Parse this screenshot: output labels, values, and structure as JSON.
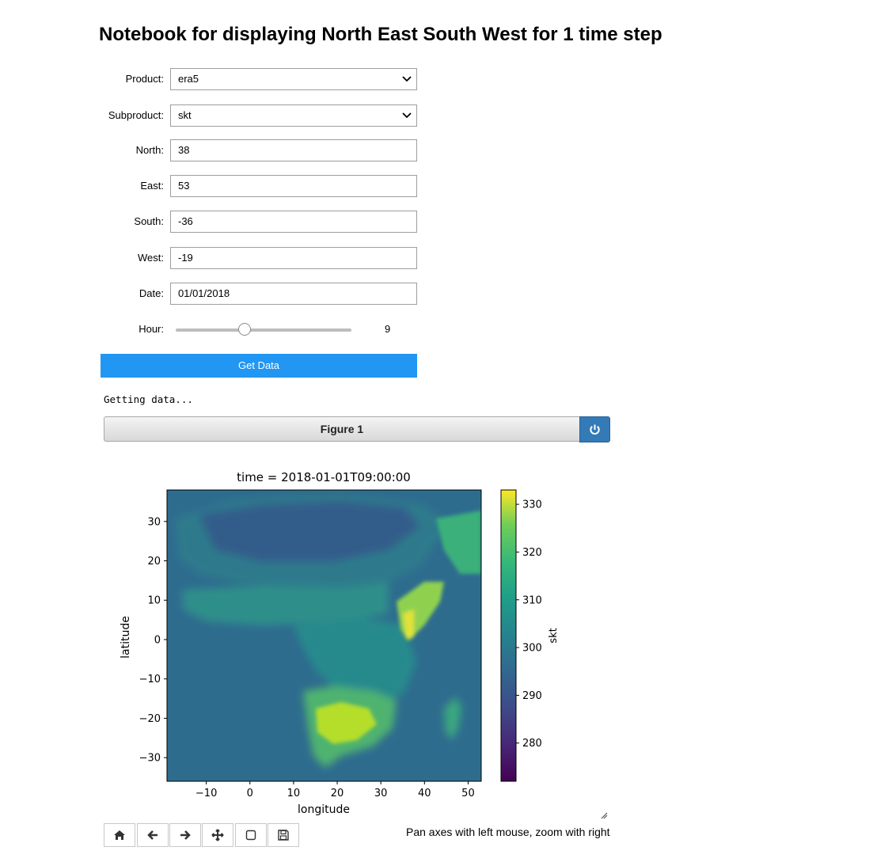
{
  "page": {
    "title": "Notebook for displaying North East South West for 1 time step"
  },
  "form": {
    "product": {
      "label": "Product:",
      "value": "era5"
    },
    "subproduct": {
      "label": "Subproduct:",
      "value": "skt"
    },
    "north": {
      "label": "North:",
      "value": "38"
    },
    "east": {
      "label": "East:",
      "value": "53"
    },
    "south": {
      "label": "South:",
      "value": "-36"
    },
    "west": {
      "label": "West:",
      "value": "-19"
    },
    "date": {
      "label": "Date:",
      "value": "01/01/2018"
    },
    "hour": {
      "label": "Hour:",
      "value": "9",
      "min": 0,
      "max": 23
    }
  },
  "get_data_label": "Get Data",
  "status_text": "Getting data...",
  "figure": {
    "title": "Figure 1",
    "hint": "Pan axes with left mouse, zoom with right"
  },
  "toolbar": [
    "home-icon",
    "back-icon",
    "forward-icon",
    "pan-icon",
    "zoom-rect-icon",
    "save-icon"
  ],
  "chart_data": {
    "type": "heatmap",
    "title": "time = 2018-01-01T09:00:00",
    "xlabel": "longitude",
    "ylabel": "latitude",
    "xlim": [
      -19,
      53
    ],
    "ylim": [
      -36,
      38
    ],
    "xticks": [
      -10,
      0,
      10,
      20,
      30,
      40,
      50
    ],
    "yticks": [
      30,
      20,
      10,
      0,
      -10,
      -20,
      -30
    ],
    "colorbar": {
      "label": "skt",
      "range": [
        272,
        333
      ],
      "ticks": [
        330,
        320,
        310,
        300,
        290,
        280
      ],
      "colormap": "viridis"
    },
    "grid": false
  }
}
